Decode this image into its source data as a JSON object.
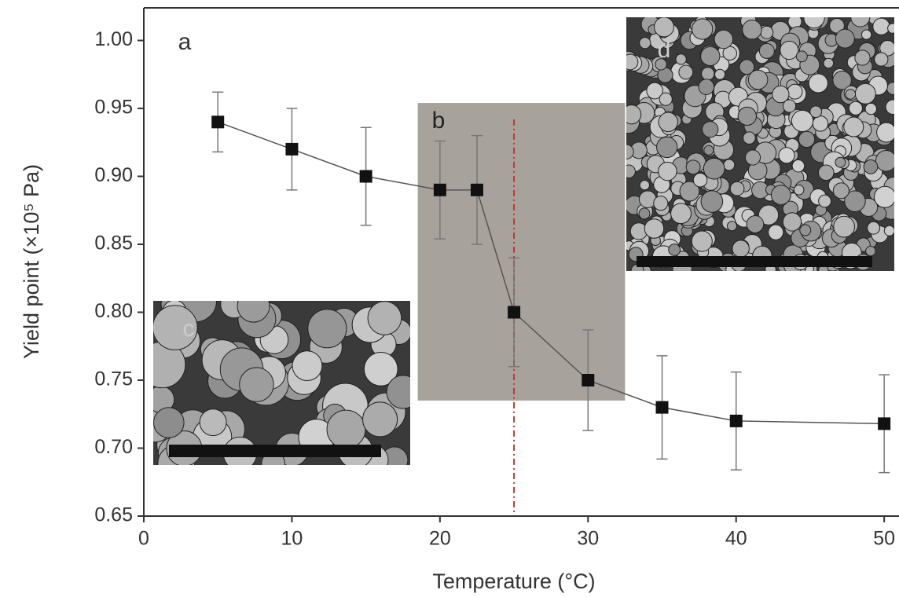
{
  "chart_data": {
    "type": "errorbar-line",
    "x_label": "Temperature (°C)",
    "y_label": "Yield point (×10⁵ Pa)",
    "x": [
      5,
      10,
      15,
      20,
      22.5,
      25,
      30,
      35,
      40,
      50
    ],
    "series": [
      {
        "color": "#111111",
        "values": [
          0.94,
          0.92,
          0.9,
          0.89,
          0.89,
          0.8,
          0.75,
          0.73,
          0.72,
          0.718
        ],
        "errors": [
          0.022,
          0.03,
          0.036,
          0.036,
          0.04,
          0.04,
          0.037,
          0.038,
          0.036,
          0.036
        ]
      }
    ],
    "xlim": [
      0,
      51
    ],
    "ylim": [
      0.65,
      1.024
    ],
    "xticks": [
      0,
      10,
      20,
      30,
      40,
      50
    ],
    "yticks": [
      {
        "value": 0.65,
        "label": "0.65"
      },
      {
        "value": 0.7,
        "label": "0.70"
      },
      {
        "value": 0.75,
        "label": "0.75"
      },
      {
        "value": 0.8,
        "label": "0.80"
      },
      {
        "value": 0.85,
        "label": "0.85"
      },
      {
        "value": 0.9,
        "label": "0.90"
      },
      {
        "value": 0.95,
        "label": "0.95"
      },
      {
        "value": 1.0,
        "label": "1.00"
      }
    ],
    "shaded_region": {
      "x": [
        18.5,
        32.5
      ],
      "y": [
        0.735,
        0.954
      ],
      "color": "#a8a29c"
    },
    "vline": {
      "x": 25,
      "color": "#c0392b"
    },
    "panel_labels": [
      "a",
      "b",
      "c",
      "d"
    ]
  }
}
